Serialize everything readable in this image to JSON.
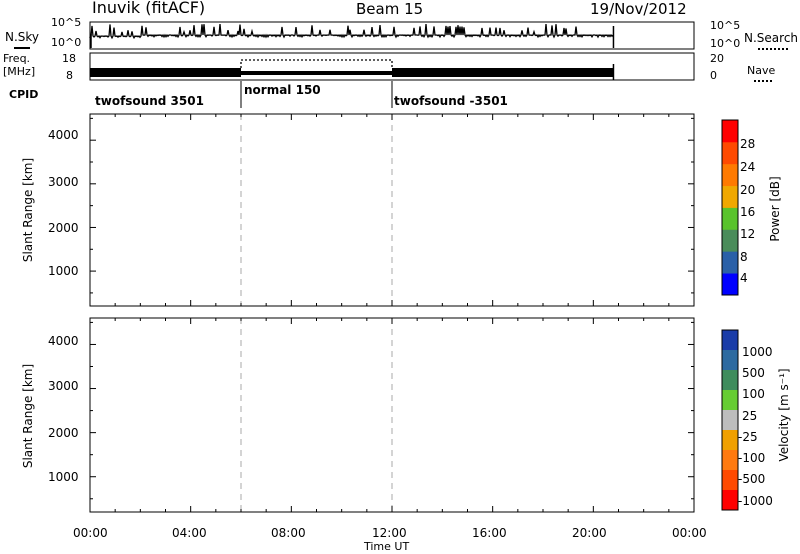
{
  "header": {
    "title": "Inuvik (fitACF)",
    "beam": "Beam 15",
    "date": "19/Nov/2012"
  },
  "noise_panel": {
    "label": "N.Sky",
    "right_label": "N.Search",
    "left_ticks": [
      "10^5",
      "10^0"
    ],
    "right_ticks": [
      "10^5",
      "10^0"
    ]
  },
  "freq_panel": {
    "label_line1": "Freq.",
    "label_line2": "[MHz]",
    "right_label": "Nave",
    "left_ticks": [
      "18",
      "8"
    ],
    "right_ticks": [
      "20",
      "0"
    ]
  },
  "cpid_panel": {
    "label": "CPID",
    "segments": [
      {
        "label": "twofsound 3501",
        "start_h": 0,
        "end_h": 6
      },
      {
        "label": "normal 150",
        "start_h": 6,
        "end_h": 12
      },
      {
        "label": "twofsound -3501",
        "start_h": 12,
        "end_h": 24
      }
    ]
  },
  "x_axis": {
    "label": "Time UT",
    "ticks": [
      "00:00",
      "04:00",
      "08:00",
      "12:00",
      "16:00",
      "20:00",
      "00:00"
    ]
  },
  "power_panel": {
    "ylabel": "Slant Range [km]",
    "yticks": [
      "4000",
      "3000",
      "2000",
      "1000"
    ],
    "colorbar_label": "Power [dB]",
    "colorbar_ticks": [
      "28",
      "24",
      "20",
      "16",
      "12",
      "8",
      "4"
    ],
    "colors": [
      "#0000ff",
      "#2a60a8",
      "#4a8c5a",
      "#59c32c",
      "#f0a800",
      "#ff7a00",
      "#ff4a00",
      "#ff0000"
    ]
  },
  "velocity_panel": {
    "ylabel": "Slant Range [km]",
    "yticks": [
      "4000",
      "3000",
      "2000",
      "1000"
    ],
    "colorbar_label": "Velocity [m s⁻¹]",
    "colorbar_ticks": [
      "1000",
      "500",
      "100",
      "25",
      "-25",
      "-100",
      "-500",
      "-1000"
    ],
    "colors": [
      "#1a3ca8",
      "#2d6aa0",
      "#3f8c5c",
      "#66cc33",
      "#bdbdbd",
      "#f0a000",
      "#ff7a10",
      "#ff4a00",
      "#ff0000"
    ]
  },
  "chart_data": {
    "type": "heatmap",
    "title": "Inuvik (fitACF)",
    "xlabel": "Time UT",
    "ylabel": "Slant Range [km]",
    "xlim": [
      0,
      24
    ],
    "ylim": [
      200,
      4600
    ],
    "x_ticks": [
      "00:00",
      "04:00",
      "08:00",
      "12:00",
      "16:00",
      "20:00",
      "00:00"
    ],
    "y_ticks": [
      1000,
      2000,
      3000,
      4000
    ],
    "data_end_hour": 20.8,
    "power_colorbar": {
      "label": "Power [dB]",
      "ticks": [
        4,
        8,
        12,
        16,
        20,
        24,
        28
      ]
    },
    "velocity_colorbar": {
      "label": "Velocity [m s-1]",
      "ticks": [
        1000,
        500,
        100,
        25,
        -25,
        -100,
        -500,
        -1000
      ]
    },
    "mode_changes_hours": [
      6,
      12
    ]
  }
}
